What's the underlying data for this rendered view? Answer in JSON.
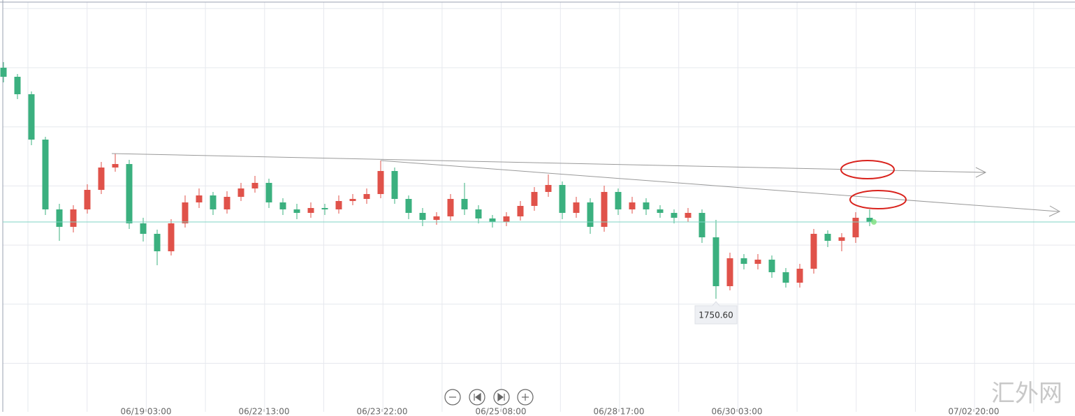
{
  "chart_data": {
    "type": "candlestick",
    "up_color": "#e0524a",
    "down_color": "#3bb07f",
    "xlim": [
      -0.25,
      76.7
    ],
    "ylim": [
      1734.9,
      1792.9
    ],
    "xticks": [
      {
        "value": 10.2,
        "label": "06/19 03:00"
      },
      {
        "value": 18.65,
        "label": "06/22 13:00"
      },
      {
        "value": 27.1,
        "label": "06/23 22:00"
      },
      {
        "value": 35.6,
        "label": "06/25 08:00"
      },
      {
        "value": 44.05,
        "label": "06/28 17:00"
      },
      {
        "value": 52.5,
        "label": "06/30 03:00"
      },
      {
        "value": 69.45,
        "label": "07/02 20:00"
      }
    ],
    "open": [
      1783.7,
      1782.4,
      1779.9,
      1773.4,
      1763.4,
      1760.9,
      1763.4,
      1766.2,
      1769.4,
      1769.9,
      1761.4,
      1759.9,
      1757.4,
      1761.4,
      1764.4,
      1765.4,
      1763.4,
      1765.2,
      1766.4,
      1767.2,
      1764.4,
      1763.4,
      1762.9,
      1763.6,
      1763.4,
      1764.6,
      1764.9,
      1765.6,
      1768.9,
      1764.9,
      1762.9,
      1761.9,
      1762.4,
      1764.9,
      1763.4,
      1762.1,
      1761.6,
      1762.4,
      1763.9,
      1765.9,
      1766.9,
      1762.9,
      1764.4,
      1760.9,
      1765.9,
      1763.4,
      1764.4,
      1763.4,
      1762.9,
      1762.2,
      1762.9,
      1759.4,
      1752.4,
      1756.4,
      1755.6,
      1756.2,
      1754.4,
      1752.9,
      1754.9,
      1759.9,
      1758.9,
      1759.4,
      1762.2
    ],
    "high": [
      1784.5,
      1782.8,
      1780.3,
      1773.8,
      1764.2,
      1764.0,
      1767.0,
      1770.2,
      1771.4,
      1770.5,
      1762.2,
      1760.5,
      1762.0,
      1765.4,
      1766.4,
      1765.9,
      1766.0,
      1767.2,
      1768.2,
      1767.8,
      1765.0,
      1764.2,
      1764.4,
      1764.2,
      1765.4,
      1765.6,
      1766.4,
      1770.4,
      1769.4,
      1765.4,
      1763.6,
      1763.0,
      1765.6,
      1767.2,
      1764.0,
      1762.6,
      1763.0,
      1764.6,
      1766.6,
      1768.4,
      1767.4,
      1765.2,
      1765.0,
      1766.8,
      1766.4,
      1765.2,
      1765.0,
      1764.0,
      1763.4,
      1763.6,
      1763.4,
      1761.9,
      1757.2,
      1757.0,
      1757.0,
      1756.8,
      1755.0,
      1755.6,
      1760.6,
      1760.4,
      1760.0,
      1763.0,
      1763.4
    ],
    "low": [
      1781.6,
      1779.2,
      1772.6,
      1762.6,
      1758.9,
      1760.1,
      1762.8,
      1765.6,
      1768.8,
      1760.6,
      1758.8,
      1755.4,
      1756.8,
      1760.8,
      1763.6,
      1762.6,
      1762.8,
      1764.6,
      1765.8,
      1763.6,
      1762.6,
      1762.0,
      1762.2,
      1762.6,
      1762.8,
      1764.0,
      1764.2,
      1765.0,
      1764.2,
      1762.0,
      1761.0,
      1761.2,
      1761.8,
      1762.6,
      1761.4,
      1760.8,
      1761.0,
      1761.8,
      1763.2,
      1765.2,
      1762.0,
      1762.2,
      1759.9,
      1760.2,
      1762.6,
      1762.8,
      1762.6,
      1762.2,
      1761.4,
      1761.6,
      1758.6,
      1750.6,
      1751.8,
      1754.8,
      1754.8,
      1753.6,
      1752.2,
      1752.2,
      1754.2,
      1758.0,
      1757.4,
      1758.6,
      1761.0
    ],
    "close": [
      1782.4,
      1779.9,
      1773.4,
      1763.4,
      1760.9,
      1763.4,
      1766.2,
      1769.4,
      1769.9,
      1761.4,
      1759.9,
      1757.4,
      1761.4,
      1764.4,
      1765.4,
      1763.4,
      1765.2,
      1766.4,
      1767.2,
      1764.4,
      1763.4,
      1762.9,
      1763.6,
      1763.4,
      1764.6,
      1764.9,
      1765.6,
      1768.9,
      1764.9,
      1762.9,
      1761.9,
      1762.4,
      1764.9,
      1763.4,
      1762.1,
      1761.6,
      1762.4,
      1763.9,
      1765.9,
      1766.9,
      1762.9,
      1764.4,
      1760.9,
      1765.9,
      1763.4,
      1764.4,
      1763.4,
      1762.9,
      1762.2,
      1762.9,
      1759.4,
      1752.4,
      1756.4,
      1755.6,
      1756.2,
      1754.4,
      1752.9,
      1754.9,
      1759.9,
      1758.9,
      1759.4,
      1762.2,
      1761.6
    ],
    "min_label": "1750.60",
    "watermark": "汇外网"
  }
}
